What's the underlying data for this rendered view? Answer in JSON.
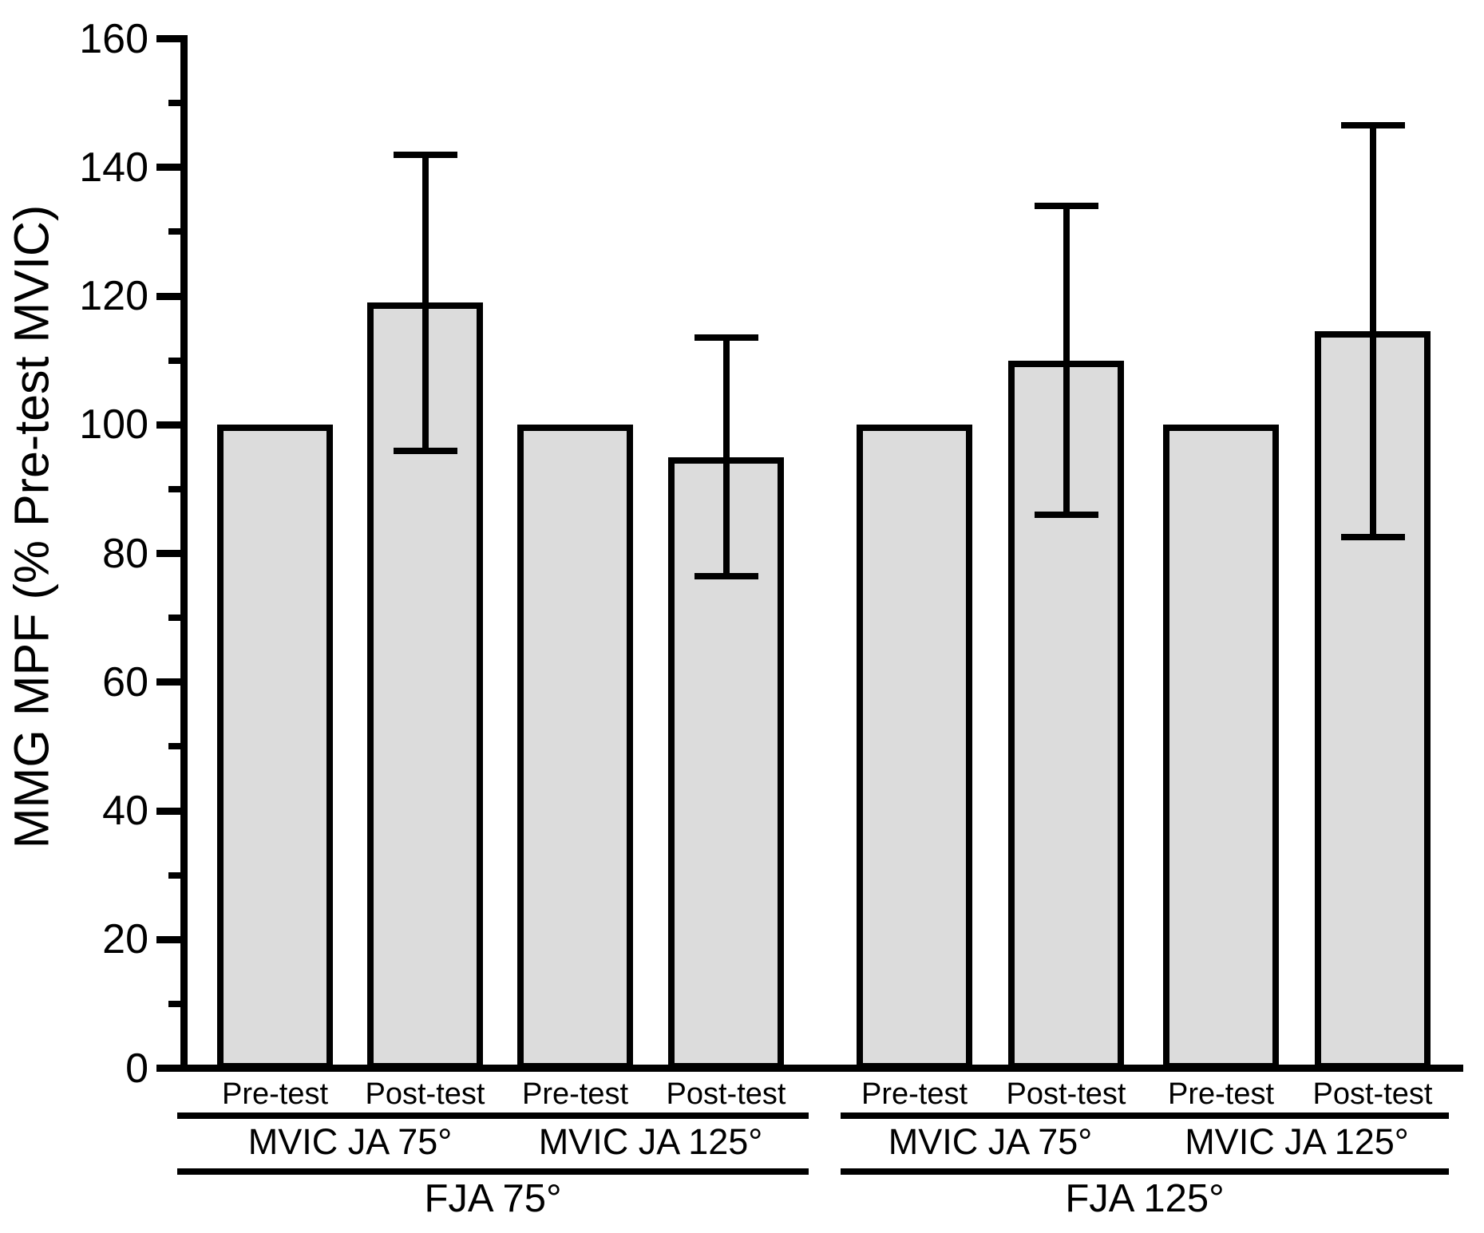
{
  "chart_data": {
    "type": "bar",
    "title": "",
    "ylabel": "MMG MPF (% Pre-test MVIC)",
    "xlabel": "",
    "ylim": [
      0,
      160
    ],
    "y_major_ticks": [
      0,
      20,
      40,
      60,
      80,
      100,
      120,
      140,
      160
    ],
    "y_minor_ticks": [
      10,
      30,
      50,
      70,
      90,
      110,
      130,
      150
    ],
    "grid": "off",
    "legend": "none",
    "bar_fill_color": "#dcdcdc",
    "bar_stroke_color": "#000000",
    "error_bar_color": "#000000",
    "groups": [
      {
        "label": "FJA 75°",
        "subgroups": [
          {
            "label": "MVIC JA 75°",
            "bars": [
              {
                "label": "Pre-test",
                "value": 100,
                "error": null
              },
              {
                "label": "Post-test",
                "value": 119,
                "error": 23
              }
            ]
          },
          {
            "label": "MVIC JA 125°",
            "bars": [
              {
                "label": "Pre-test",
                "value": 100,
                "error": null
              },
              {
                "label": "Post-test",
                "value": 95,
                "error": 18.5
              }
            ]
          }
        ]
      },
      {
        "label": "FJA 125°",
        "subgroups": [
          {
            "label": "MVIC JA 75°",
            "bars": [
              {
                "label": "Pre-test",
                "value": 100,
                "error": null
              },
              {
                "label": "Post-test",
                "value": 110,
                "error": 24
              }
            ]
          },
          {
            "label": "MVIC JA 125°",
            "bars": [
              {
                "label": "Pre-test",
                "value": 100,
                "error": null
              },
              {
                "label": "Post-test",
                "value": 114.5,
                "error": 32
              }
            ]
          }
        ]
      }
    ]
  }
}
